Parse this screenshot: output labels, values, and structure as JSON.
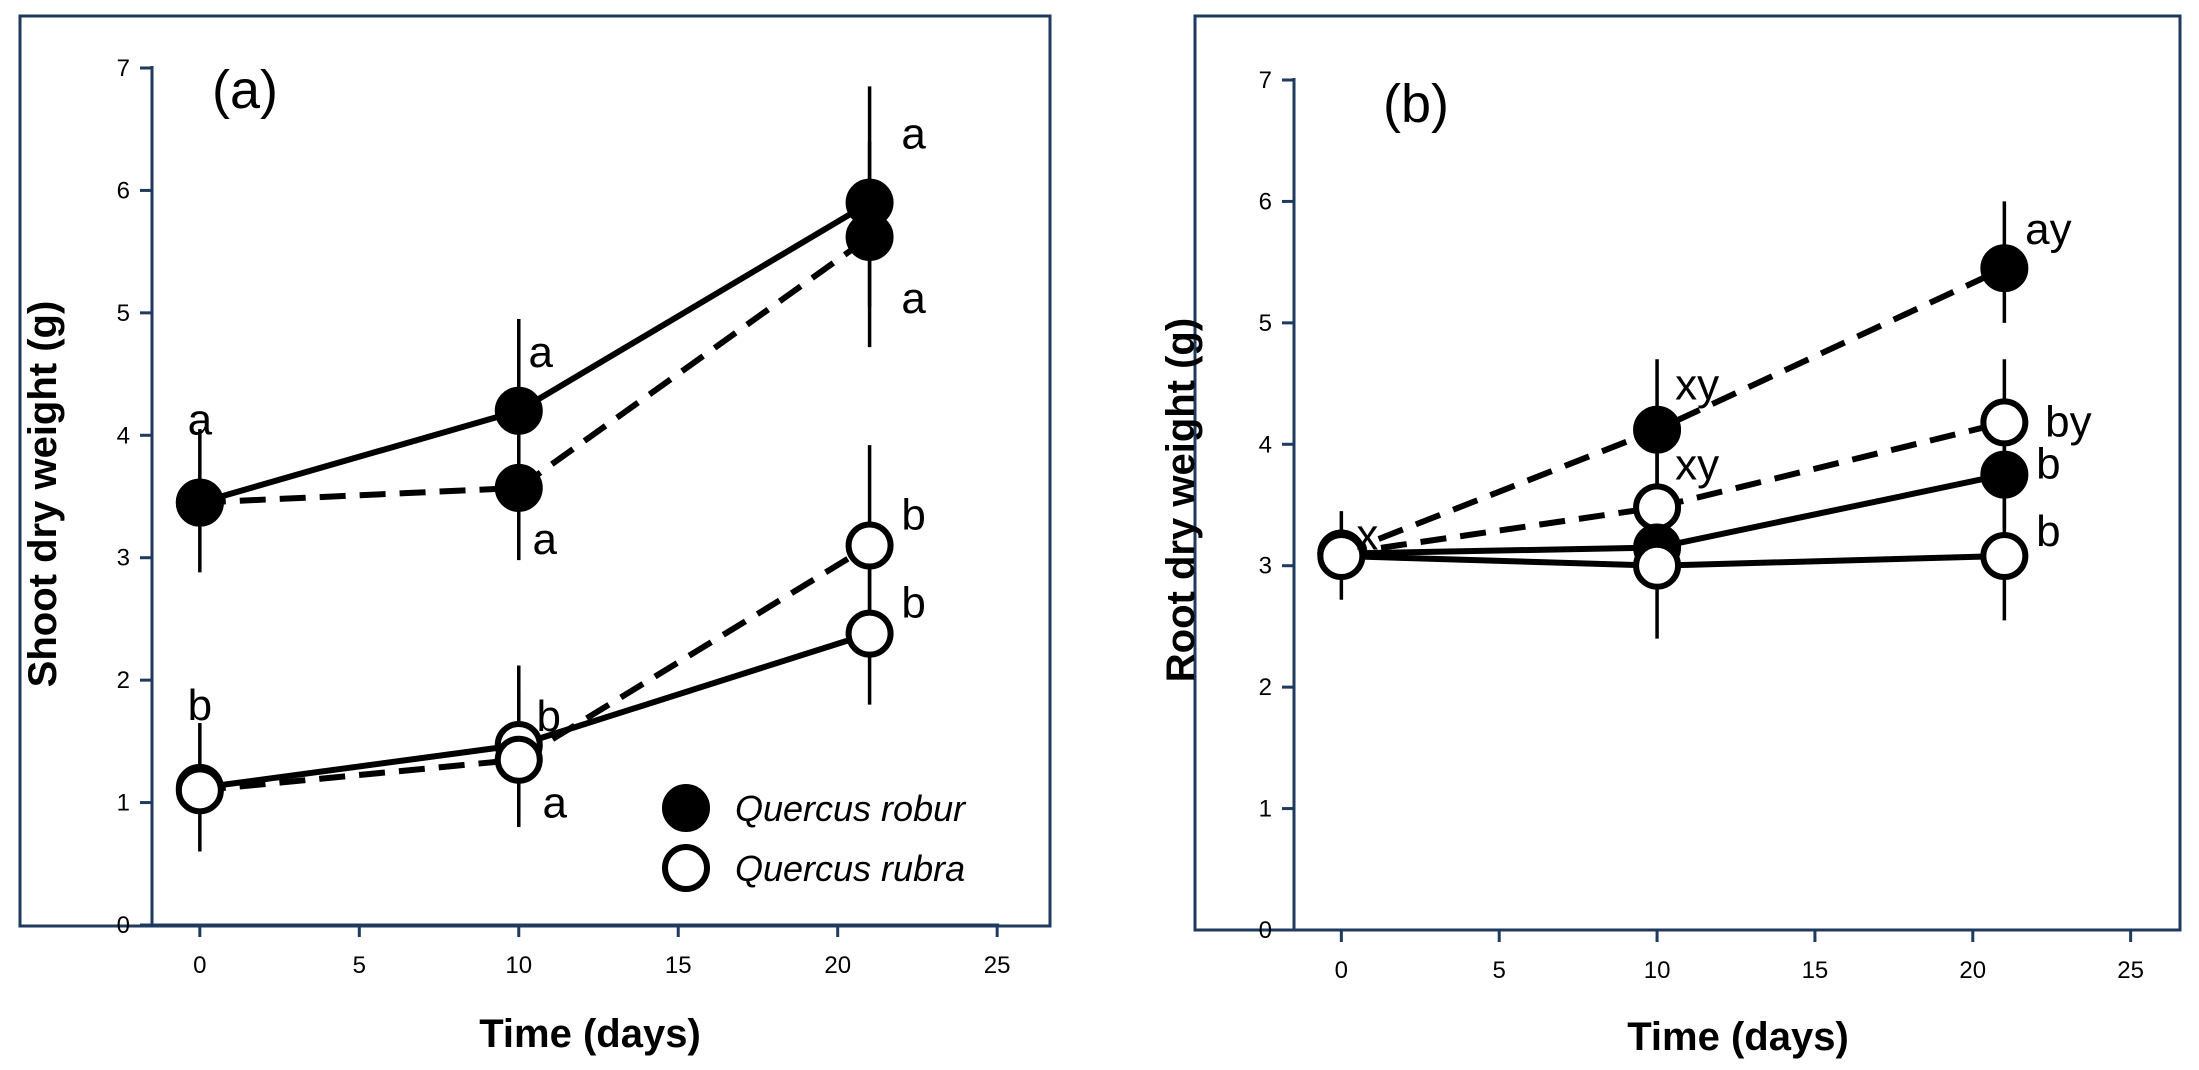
{
  "colors": {
    "frame": "#1f3a5f",
    "ink": "#000000",
    "open_fill": "#ffffff"
  },
  "legend": {
    "items": [
      {
        "label": "Quercus robur",
        "marker": "filled"
      },
      {
        "label": "Quercus rubra",
        "marker": "open"
      }
    ]
  },
  "chart_data": [
    {
      "type": "line",
      "panel_label": "(a)",
      "xlabel": "Time (days)",
      "ylabel": "Shoot dry weight (g)",
      "xlim": [
        -1.5,
        26.5
      ],
      "ylim": [
        0,
        7
      ],
      "xticks": [
        0,
        5,
        10,
        15,
        20,
        25
      ],
      "yticks": [
        0,
        1,
        2,
        3,
        4,
        5,
        6,
        7
      ],
      "grid": false,
      "legend_position": "bottom-right",
      "series": [
        {
          "species": "Quercus robur",
          "marker": "filled",
          "line": "solid",
          "points": [
            {
              "x": 0,
              "y": 3.45,
              "lo": 2.88,
              "hi": 4.05,
              "label": "a"
            },
            {
              "x": 10,
              "y": 4.2,
              "lo": 3.55,
              "hi": 4.95,
              "label": "a"
            },
            {
              "x": 21,
              "y": 5.9,
              "lo": 5.05,
              "hi": 6.85,
              "label": "a"
            }
          ]
        },
        {
          "species": "Quercus robur",
          "marker": "filled",
          "line": "dashed",
          "points": [
            {
              "x": 0,
              "y": 3.45
            },
            {
              "x": 10,
              "y": 3.57,
              "lo": 2.98,
              "hi": 4.15,
              "label": "a"
            },
            {
              "x": 21,
              "y": 5.62,
              "lo": 4.72,
              "hi": 6.4,
              "label": "a"
            }
          ]
        },
        {
          "species": "Quercus rubra",
          "marker": "open",
          "line": "solid",
          "points": [
            {
              "x": 0,
              "y": 1.12,
              "lo": 0.6,
              "hi": 1.65,
              "label": "b"
            },
            {
              "x": 10,
              "y": 1.47,
              "lo": 0.88,
              "hi": 2.12,
              "label": "b"
            },
            {
              "x": 21,
              "y": 2.38,
              "lo": 1.8,
              "hi": 2.95,
              "label": "b"
            }
          ]
        },
        {
          "species": "Quercus rubra",
          "marker": "open",
          "line": "dashed",
          "points": [
            {
              "x": 0,
              "y": 1.1
            },
            {
              "x": 10,
              "y": 1.35,
              "lo": 0.8,
              "hi": 1.9,
              "label": "a"
            },
            {
              "x": 21,
              "y": 3.1,
              "lo": 2.4,
              "hi": 3.92,
              "label": "b"
            }
          ]
        }
      ]
    },
    {
      "type": "line",
      "panel_label": "(b)",
      "xlabel": "Time (days)",
      "ylabel": "Root dry weight (g)",
      "xlim": [
        -1.5,
        26.5
      ],
      "ylim": [
        0,
        7
      ],
      "xticks": [
        0,
        5,
        10,
        15,
        20,
        25
      ],
      "yticks": [
        0,
        1,
        2,
        3,
        4,
        5,
        6,
        7
      ],
      "grid": false,
      "series": [
        {
          "species": "Quercus robur",
          "marker": "filled",
          "line": "dashed",
          "points": [
            {
              "x": 0,
              "y": 3.1,
              "lo": 2.72,
              "hi": 3.45,
              "label": "x"
            },
            {
              "x": 10,
              "y": 4.12,
              "lo": 3.55,
              "hi": 4.7,
              "label": "xy"
            },
            {
              "x": 21,
              "y": 5.45,
              "lo": 5.0,
              "hi": 6.0,
              "label": "ay"
            }
          ]
        },
        {
          "species": "Quercus rubra",
          "marker": "open",
          "line": "dashed",
          "points": [
            {
              "x": 0,
              "y": 3.1
            },
            {
              "x": 10,
              "y": 3.48,
              "lo": 3.0,
              "hi": 4.0,
              "label": "xy"
            },
            {
              "x": 21,
              "y": 4.18,
              "lo": 3.65,
              "hi": 4.7,
              "label": "by"
            }
          ]
        },
        {
          "species": "Quercus robur",
          "marker": "filled",
          "line": "solid",
          "points": [
            {
              "x": 0,
              "y": 3.1
            },
            {
              "x": 10,
              "y": 3.15
            },
            {
              "x": 21,
              "y": 3.75,
              "lo": 3.3,
              "hi": 4.2,
              "label": "b"
            }
          ]
        },
        {
          "species": "Quercus rubra",
          "marker": "open",
          "line": "solid",
          "points": [
            {
              "x": 0,
              "y": 3.08
            },
            {
              "x": 10,
              "y": 3.0,
              "lo": 2.4,
              "hi": 3.6
            },
            {
              "x": 21,
              "y": 3.08,
              "lo": 2.55,
              "hi": 3.62,
              "label": "b"
            }
          ]
        }
      ]
    }
  ]
}
